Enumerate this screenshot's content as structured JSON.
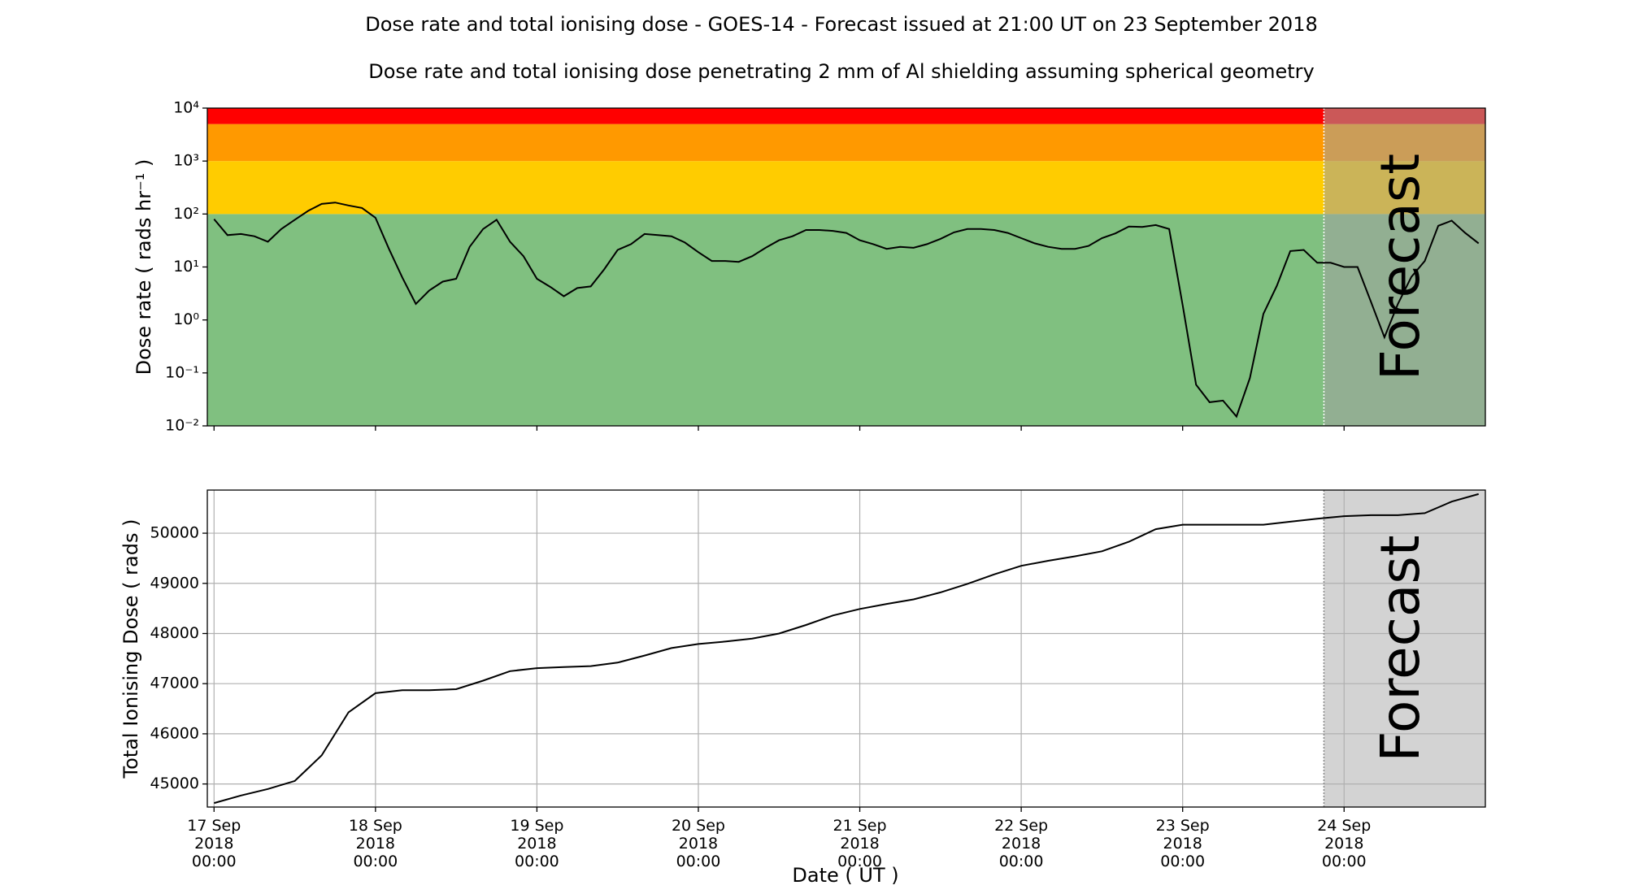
{
  "title": "Dose rate and total ionising dose - GOES-14 - Forecast issued at 21:00 UT on 23 September 2018",
  "subtitle": "Dose rate and total ionising dose penetrating 2 mm of Al shielding assuming spherical geometry",
  "xlabel": "Date ( UT )",
  "forecast_label": "Forecast",
  "forecast_start": "2018-09-23T21:00",
  "chart_data": [
    {
      "type": "line",
      "ylabel": "Dose rate ( rads hr⁻¹ )",
      "log": true,
      "grid": false,
      "color": "#000000",
      "xlim": [
        "2018-09-16T23:00",
        "2018-09-24T21:00"
      ],
      "xticks": [
        "2018-09-17T00:00",
        "2018-09-18T00:00",
        "2018-09-19T00:00",
        "2018-09-20T00:00",
        "2018-09-21T00:00",
        "2018-09-22T00:00",
        "2018-09-23T00:00",
        "2018-09-24T00:00"
      ],
      "ylim": [
        0.01,
        10000
      ],
      "yticks": [
        {
          "value": 0.01,
          "label": "10⁻²"
        },
        {
          "value": 0.1,
          "label": "10⁻¹"
        },
        {
          "value": 1,
          "label": "10⁰"
        },
        {
          "value": 10,
          "label": "10¹"
        },
        {
          "value": 100,
          "label": "10²"
        },
        {
          "value": 1000,
          "label": "10³"
        },
        {
          "value": 10000,
          "label": "10⁴"
        }
      ],
      "bands": [
        {
          "from": 0.01,
          "to": 100,
          "color": "#80c080"
        },
        {
          "from": 100,
          "to": 1000,
          "color": "#ffcc00"
        },
        {
          "from": 1000,
          "to": 5000,
          "color": "#ff9900"
        },
        {
          "from": 5000,
          "to": 10000,
          "color": "#ff0000"
        }
      ],
      "x": [
        "2018-09-17T00:00",
        "2018-09-17T02:00",
        "2018-09-17T04:00",
        "2018-09-17T06:00",
        "2018-09-17T08:00",
        "2018-09-17T10:00",
        "2018-09-17T12:00",
        "2018-09-17T14:00",
        "2018-09-17T16:00",
        "2018-09-17T18:00",
        "2018-09-17T20:00",
        "2018-09-17T22:00",
        "2018-09-18T00:00",
        "2018-09-18T02:00",
        "2018-09-18T04:00",
        "2018-09-18T06:00",
        "2018-09-18T08:00",
        "2018-09-18T10:00",
        "2018-09-18T12:00",
        "2018-09-18T14:00",
        "2018-09-18T16:00",
        "2018-09-18T18:00",
        "2018-09-18T20:00",
        "2018-09-18T22:00",
        "2018-09-19T00:00",
        "2018-09-19T02:00",
        "2018-09-19T04:00",
        "2018-09-19T06:00",
        "2018-09-19T08:00",
        "2018-09-19T10:00",
        "2018-09-19T12:00",
        "2018-09-19T14:00",
        "2018-09-19T16:00",
        "2018-09-19T18:00",
        "2018-09-19T20:00",
        "2018-09-19T22:00",
        "2018-09-20T00:00",
        "2018-09-20T02:00",
        "2018-09-20T04:00",
        "2018-09-20T06:00",
        "2018-09-20T08:00",
        "2018-09-20T10:00",
        "2018-09-20T12:00",
        "2018-09-20T14:00",
        "2018-09-20T16:00",
        "2018-09-20T18:00",
        "2018-09-20T20:00",
        "2018-09-20T22:00",
        "2018-09-21T00:00",
        "2018-09-21T02:00",
        "2018-09-21T04:00",
        "2018-09-21T06:00",
        "2018-09-21T08:00",
        "2018-09-21T10:00",
        "2018-09-21T12:00",
        "2018-09-21T14:00",
        "2018-09-21T16:00",
        "2018-09-21T18:00",
        "2018-09-21T20:00",
        "2018-09-21T22:00",
        "2018-09-22T00:00",
        "2018-09-22T02:00",
        "2018-09-22T04:00",
        "2018-09-22T06:00",
        "2018-09-22T08:00",
        "2018-09-22T10:00",
        "2018-09-22T12:00",
        "2018-09-22T14:00",
        "2018-09-22T16:00",
        "2018-09-22T18:00",
        "2018-09-22T20:00",
        "2018-09-22T22:00",
        "2018-09-23T00:00",
        "2018-09-23T02:00",
        "2018-09-23T04:00",
        "2018-09-23T06:00",
        "2018-09-23T08:00",
        "2018-09-23T10:00",
        "2018-09-23T12:00",
        "2018-09-23T14:00",
        "2018-09-23T16:00",
        "2018-09-23T18:00",
        "2018-09-23T20:00",
        "2018-09-23T22:00",
        "2018-09-24T00:00",
        "2018-09-24T02:00",
        "2018-09-24T04:00",
        "2018-09-24T06:00",
        "2018-09-24T08:00",
        "2018-09-24T10:00",
        "2018-09-24T12:00",
        "2018-09-24T14:00",
        "2018-09-24T16:00",
        "2018-09-24T18:00",
        "2018-09-24T20:00"
      ],
      "values": [
        80,
        40,
        42,
        38,
        30,
        52,
        78,
        115,
        155,
        165,
        145,
        130,
        85,
        22,
        6.3,
        2,
        3.6,
        5.3,
        6,
        24,
        52,
        78,
        30,
        16,
        6,
        4.2,
        2.8,
        4,
        4.3,
        9,
        21,
        27,
        42,
        40,
        38,
        29,
        19,
        13,
        13,
        12.5,
        16,
        23,
        32,
        38,
        50,
        50,
        48,
        44,
        32,
        27,
        22,
        24,
        23,
        27,
        34,
        45,
        52,
        52,
        50,
        44,
        35,
        28,
        24,
        22,
        22,
        25,
        35,
        43,
        58,
        57,
        62,
        52,
        1.9,
        0.06,
        0.028,
        0.03,
        0.015,
        0.08,
        1.3,
        4.4,
        20,
        21,
        12,
        12,
        10,
        10,
        2.2,
        0.47,
        2,
        6.5,
        13,
        60,
        75,
        44,
        28
      ]
    },
    {
      "type": "line",
      "ylabel": "Total Ionising Dose ( rads )",
      "log": false,
      "grid": true,
      "color": "#000000",
      "xlim": [
        "2018-09-16T23:00",
        "2018-09-24T21:00"
      ],
      "xticks": [
        {
          "value": "2018-09-17T00:00",
          "label": "17 Sep\n2018\n00:00"
        },
        {
          "value": "2018-09-18T00:00",
          "label": "18 Sep\n2018\n00:00"
        },
        {
          "value": "2018-09-19T00:00",
          "label": "19 Sep\n2018\n00:00"
        },
        {
          "value": "2018-09-20T00:00",
          "label": "20 Sep\n2018\n00:00"
        },
        {
          "value": "2018-09-21T00:00",
          "label": "21 Sep\n2018\n00:00"
        },
        {
          "value": "2018-09-22T00:00",
          "label": "22 Sep\n2018\n00:00"
        },
        {
          "value": "2018-09-23T00:00",
          "label": "23 Sep\n2018\n00:00"
        },
        {
          "value": "2018-09-24T00:00",
          "label": "24 Sep\n2018\n00:00"
        }
      ],
      "ylim": [
        44540,
        50860
      ],
      "yticks": [
        45000,
        46000,
        47000,
        48000,
        49000,
        50000
      ],
      "x": [
        "2018-09-17T00:00",
        "2018-09-17T04:00",
        "2018-09-17T08:00",
        "2018-09-17T12:00",
        "2018-09-17T16:00",
        "2018-09-17T20:00",
        "2018-09-18T00:00",
        "2018-09-18T04:00",
        "2018-09-18T08:00",
        "2018-09-18T12:00",
        "2018-09-18T16:00",
        "2018-09-18T20:00",
        "2018-09-19T00:00",
        "2018-09-19T04:00",
        "2018-09-19T08:00",
        "2018-09-19T12:00",
        "2018-09-19T16:00",
        "2018-09-19T20:00",
        "2018-09-20T00:00",
        "2018-09-20T04:00",
        "2018-09-20T08:00",
        "2018-09-20T12:00",
        "2018-09-20T16:00",
        "2018-09-20T20:00",
        "2018-09-21T00:00",
        "2018-09-21T04:00",
        "2018-09-21T08:00",
        "2018-09-21T12:00",
        "2018-09-21T16:00",
        "2018-09-21T20:00",
        "2018-09-22T00:00",
        "2018-09-22T04:00",
        "2018-09-22T08:00",
        "2018-09-22T12:00",
        "2018-09-22T16:00",
        "2018-09-22T20:00",
        "2018-09-23T00:00",
        "2018-09-23T04:00",
        "2018-09-23T08:00",
        "2018-09-23T12:00",
        "2018-09-23T16:00",
        "2018-09-23T20:00",
        "2018-09-24T00:00",
        "2018-09-24T04:00",
        "2018-09-24T08:00",
        "2018-09-24T12:00",
        "2018-09-24T16:00",
        "2018-09-24T20:00"
      ],
      "values": [
        44620,
        44770,
        44900,
        45060,
        45570,
        46430,
        46810,
        46870,
        46870,
        46890,
        47060,
        47250,
        47310,
        47330,
        47350,
        47420,
        47560,
        47710,
        47790,
        47840,
        47900,
        48000,
        48170,
        48360,
        48490,
        48590,
        48680,
        48820,
        48990,
        49180,
        49350,
        49450,
        49540,
        49640,
        49830,
        50080,
        50170,
        50170,
        50170,
        50170,
        50230,
        50290,
        50340,
        50360,
        50360,
        50400,
        50630,
        50780
      ]
    }
  ]
}
